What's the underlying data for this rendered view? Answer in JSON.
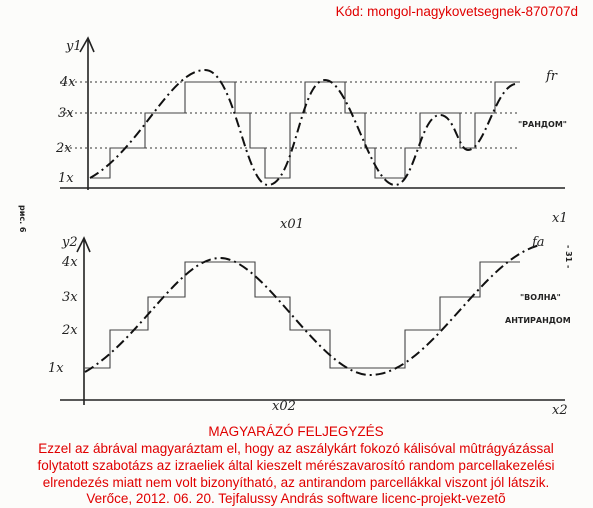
{
  "header": {
    "code": "Kód: mongol-nagykovetsegnek-870707d"
  },
  "figure": {
    "side_label": "рис. 6",
    "page_number": "- 31 -",
    "top_plot": {
      "y_label": "y1",
      "y_ticks": [
        "4x",
        "3x",
        "2x",
        "1x"
      ],
      "curve_label": "fr",
      "mode_label": "\"РАНДОМ\"",
      "x_marker": "x01",
      "x_label": "x1"
    },
    "bottom_plot": {
      "y_label": "y2",
      "y_ticks": [
        "4x",
        "3x",
        "2x",
        "1x"
      ],
      "curve_label": "fa",
      "mode_label": "\"ВОЛНА\"",
      "mode_sublabel": "АНТИРАНДОМ",
      "x_marker": "x02",
      "x_label": "x2"
    }
  },
  "caption": {
    "title": "MAGYARÁZÓ FELJEGYZÉS",
    "lines": [
      "Ezzel az ábrával magyaráztam el, hogy az aszálykárt fokozó kálisóval mûtrágyázással",
      "folytatott szabotázs az izraeliek által kieszelt mérészavarosító random parcellakezelési",
      "elrendezés miatt nem volt bizonyítható, az antirandom parcellákkal viszont jól látszik.",
      "Verőce, 2012. 06. 20. Tejfalussy András software licenc-projekt-vezetõ"
    ]
  }
}
